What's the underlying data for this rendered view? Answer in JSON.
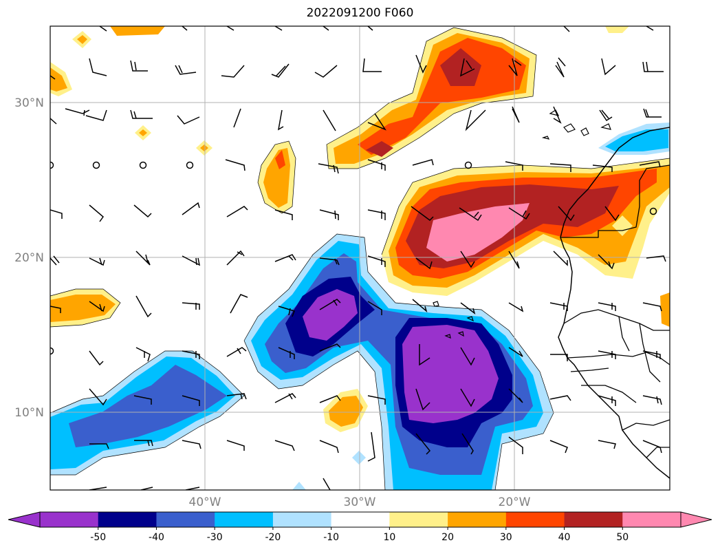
{
  "title": "2022091200 F060",
  "axes": {
    "lat_labels": [
      "30°N",
      "20°N",
      "10°N"
    ],
    "lon_labels": [
      "40°W",
      "30°W",
      "20°W"
    ]
  },
  "colorbar": {
    "ticks": [
      "-50",
      "-40",
      "-30",
      "-20",
      "-10",
      "10",
      "20",
      "30",
      "40",
      "50"
    ],
    "colors": [
      "#9932cc",
      "#00008b",
      "#3a5fcd",
      "#00bfff",
      "#b0e2ff",
      "#ffffff",
      "#fff08a",
      "#ffa500",
      "#ff4500",
      "#b22222",
      "#ff88b0"
    ]
  }
}
